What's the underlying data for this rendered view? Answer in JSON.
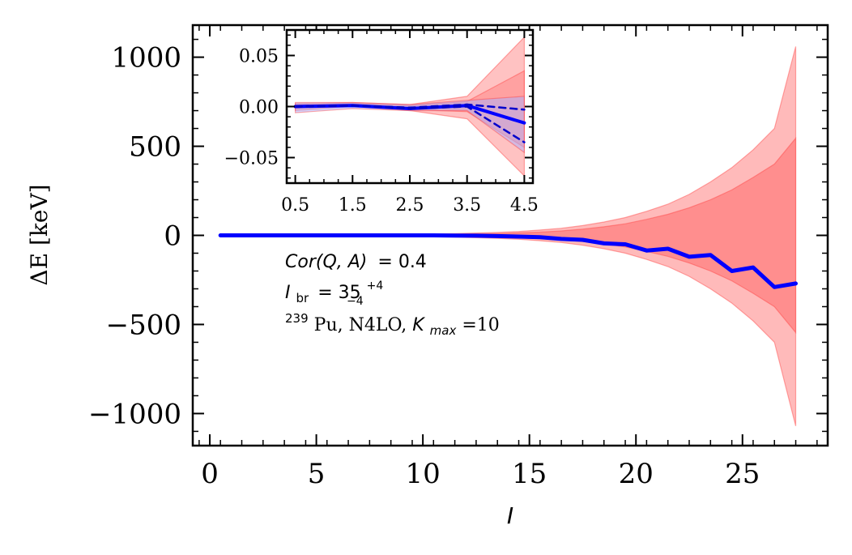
{
  "chart_data": [
    {
      "type": "line",
      "xlabel": "I",
      "ylabel": "ΔE [keV]",
      "xlim": [
        -0.8,
        29
      ],
      "ylim": [
        -1180,
        1180
      ],
      "xticks": [
        0,
        5,
        10,
        15,
        20,
        25
      ],
      "xtick_labels": [
        "0",
        "5",
        "10",
        "15",
        "20",
        "25"
      ],
      "yticks": [
        1000,
        500,
        0,
        -500,
        -1000
      ],
      "ytick_labels": [
        "1000",
        "500",
        "0",
        "−500",
        "−1000"
      ],
      "x": [
        0.5,
        1.5,
        2.5,
        3.5,
        4.5,
        5.5,
        6.5,
        7.5,
        8.5,
        9.5,
        10.5,
        11.5,
        12.5,
        13.5,
        14.5,
        15.5,
        16.5,
        17.5,
        18.5,
        19.5,
        20.5,
        21.5,
        22.5,
        23.5,
        24.5,
        25.5,
        26.5,
        27.5
      ],
      "series": [
        {
          "values": [
            0,
            0,
            0,
            0,
            0,
            0,
            0,
            0,
            0,
            0,
            0,
            -1,
            -2,
            -4,
            -7,
            -10,
            -20,
            -25,
            -45,
            -50,
            -85,
            -75,
            -120,
            -110,
            -200,
            -180,
            -290,
            -270
          ],
          "color": "#0000ff"
        }
      ],
      "bands": [
        {
          "lower": [
            0,
            0,
            0,
            -1,
            -1,
            -2,
            -3,
            -4,
            -5,
            -6,
            -8,
            -10,
            -13,
            -17,
            -22,
            -30,
            -40,
            -55,
            -75,
            -100,
            -135,
            -175,
            -230,
            -300,
            -380,
            -480,
            -600,
            -1070
          ],
          "upper": [
            0,
            0,
            0,
            1,
            1,
            2,
            3,
            4,
            5,
            6,
            8,
            10,
            13,
            17,
            22,
            30,
            40,
            55,
            75,
            100,
            135,
            175,
            230,
            300,
            380,
            480,
            600,
            1060
          ],
          "color": "#ffb3b3"
        },
        {
          "lower": [
            0,
            0,
            0,
            0,
            -1,
            -1,
            -2,
            -2,
            -3,
            -4,
            -5,
            -6,
            -8,
            -10,
            -14,
            -18,
            -25,
            -35,
            -48,
            -65,
            -90,
            -118,
            -155,
            -200,
            -255,
            -325,
            -400,
            -545
          ],
          "upper": [
            0,
            0,
            0,
            0,
            1,
            1,
            2,
            2,
            3,
            4,
            5,
            6,
            8,
            10,
            14,
            18,
            25,
            35,
            48,
            65,
            90,
            118,
            155,
            200,
            255,
            325,
            400,
            545
          ],
          "color": "#ff7f7f"
        }
      ],
      "annotations": [
        {
          "text": "Cor(Q, A) = 0.4",
          "parts": {
            "lhs": "Cor(Q, A)",
            "eq": "= 0.4"
          }
        },
        {
          "text": "I_br = 35^{+4}_{-4}",
          "parts": {
            "sym": "I",
            "sub": "br",
            "eq": "= 35",
            "sup": "+4",
            "low": "−4"
          }
        },
        {
          "text": "239Pu, N4LO, K_max=10",
          "parts": {
            "iso": "239",
            "rest": "Pu, N4LO, ",
            "k": "K",
            "ksub": "max",
            "eq": "=10"
          }
        }
      ]
    },
    {
      "type": "line",
      "xlim": [
        0.35,
        4.65
      ],
      "ylim": [
        -0.075,
        0.075
      ],
      "xticks": [
        0.5,
        1.5,
        2.5,
        3.5,
        4.5
      ],
      "xtick_labels": [
        "0.5",
        "1.5",
        "2.5",
        "3.5",
        "4.5"
      ],
      "yticks": [
        0.05,
        0.0,
        -0.05
      ],
      "ytick_labels": [
        "0.05",
        "0.00",
        "−0.05"
      ],
      "x": [
        0.5,
        1.5,
        2.5,
        3.5,
        4.5
      ],
      "series": [
        {
          "values": [
            0.0,
            0.001,
            -0.002,
            0.001,
            -0.016
          ],
          "color": "#0000ff",
          "style": "solid"
        },
        {
          "values": [
            0.0,
            0.001,
            -0.001,
            0.002,
            -0.003
          ],
          "color": "#0000cc",
          "style": "dashed"
        },
        {
          "values": [
            0.0,
            0.001,
            -0.002,
            0.0,
            -0.035
          ],
          "color": "#0000cc",
          "style": "dashed"
        }
      ],
      "bands": [
        {
          "lower": [
            -0.004,
            0.0,
            -0.004,
            -0.012,
            -0.068
          ],
          "upper": [
            0.003,
            0.004,
            0.002,
            0.01,
            0.068
          ],
          "color": "#ffb3b3"
        },
        {
          "lower": [
            -0.002,
            0.001,
            -0.003,
            -0.005,
            -0.04
          ],
          "upper": [
            0.002,
            0.003,
            0.001,
            0.005,
            0.035
          ],
          "color": "#ff7f7f"
        },
        {
          "lower": [
            -0.006,
            -0.002,
            -0.004,
            -0.004,
            -0.045
          ],
          "upper": [
            0.004,
            0.004,
            0.002,
            0.006,
            0.01
          ],
          "color": "#aab0ff"
        }
      ]
    }
  ]
}
